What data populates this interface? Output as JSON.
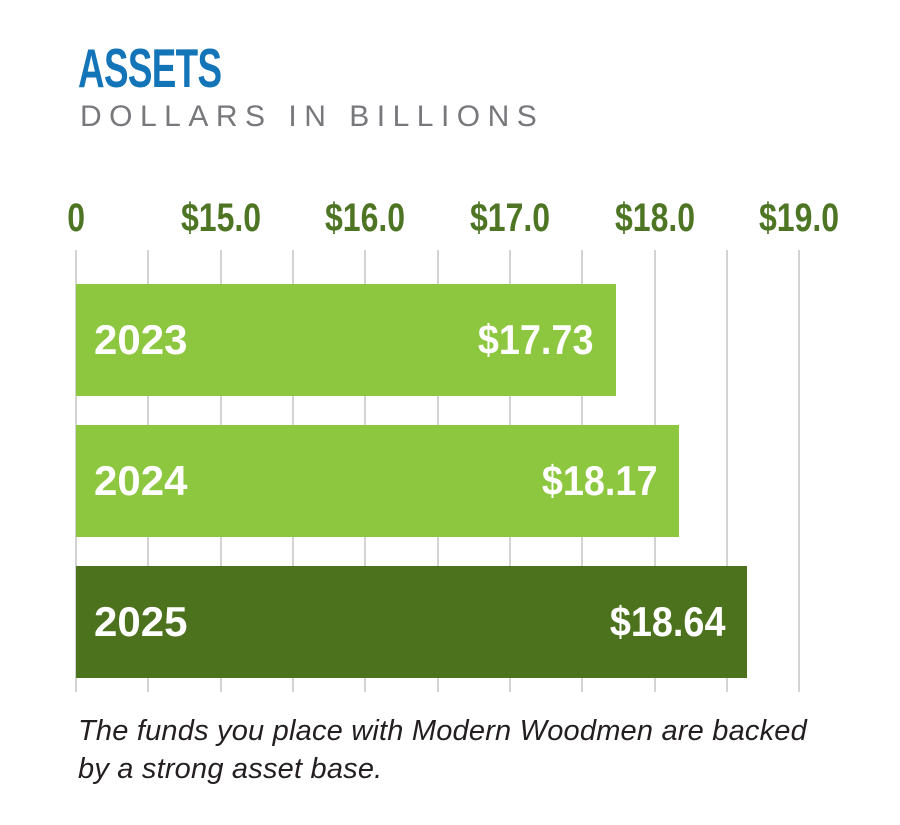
{
  "header": {
    "title": "ASSETS",
    "subtitle": "DOLLARS IN BILLIONS"
  },
  "colors": {
    "title_blue": "#1375B8",
    "subtitle_gray": "#77787B",
    "axis_green": "#4E7524",
    "bar_light_green": "#8DC63F",
    "bar_dark_green": "#4C721D",
    "gridline_gray": "#D1D3D4",
    "bar_text_white": "#FFFFFF",
    "footnote_dark": "#231F20"
  },
  "chart_data": {
    "type": "bar",
    "orientation": "horizontal",
    "title": "ASSETS",
    "subtitle": "DOLLARS IN BILLIONS",
    "categories": [
      "2023",
      "2024",
      "2025"
    ],
    "values": [
      17.73,
      18.17,
      18.64
    ],
    "value_labels": [
      "$17.73",
      "$18.17",
      "$18.64"
    ],
    "bar_colors": [
      "#8DC63F",
      "#8DC63F",
      "#4C721D"
    ],
    "unit": "billions of dollars",
    "axis": {
      "position": "top",
      "broken_axis": true,
      "grid": true,
      "minor_tick_interval": 0.5,
      "tick_labels": [
        "0",
        "$15.0",
        "$16.0",
        "$17.0",
        "$18.0",
        "$19.0"
      ],
      "tick_values": [
        0,
        15.0,
        16.0,
        17.0,
        18.0,
        19.0
      ],
      "range_after_break": [
        15.0,
        19.0
      ]
    }
  },
  "footnote": {
    "lines": [
      "The funds you place with Modern Woodmen are backed",
      "by a strong asset base."
    ]
  }
}
